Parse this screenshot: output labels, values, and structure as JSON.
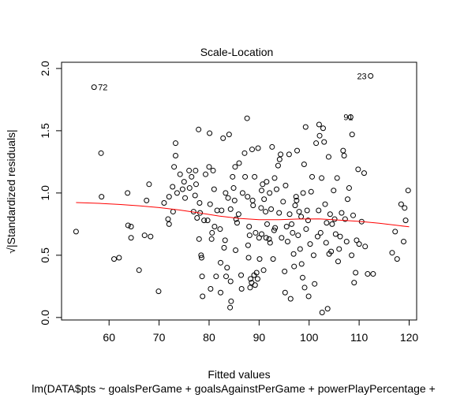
{
  "chart_data": {
    "type": "scatter",
    "title": "Scale-Location",
    "xlabel": "Fitted values",
    "ylabel": "√|Standardized residuals|",
    "subtitle": "lm(DATA$pts ~ goalsPerGame + goalsAgainstPerGame + powerPlayPercentage + ",
    "xlim": [
      50.5,
      121.5
    ],
    "ylim": [
      -0.02,
      2.05
    ],
    "x_ticks": [
      60,
      70,
      80,
      90,
      100,
      110,
      120
    ],
    "y_ticks": [
      0.0,
      0.5,
      1.0,
      1.5,
      2.0
    ],
    "x_tick_labels": [
      "60",
      "70",
      "80",
      "90",
      "100",
      "110",
      "120"
    ],
    "y_tick_labels": [
      "0.0",
      "0.5",
      "1.0",
      "1.5",
      "2.0"
    ],
    "point_color": "#000000",
    "smooth_color": "#FF0000",
    "annotations": [
      {
        "label": "72",
        "x": 57.0,
        "y": 1.85,
        "side": "right"
      },
      {
        "label": "23",
        "x": 112.3,
        "y": 1.94,
        "side": "left"
      },
      {
        "label": "91",
        "x": 109.6,
        "y": 1.61,
        "side": "left"
      }
    ],
    "points": [
      [
        53.4,
        0.69
      ],
      [
        57.0,
        1.85
      ],
      [
        58.4,
        1.32
      ],
      [
        58.5,
        0.97
      ],
      [
        61.0,
        0.47
      ],
      [
        62.0,
        0.48
      ],
      [
        63.7,
        1.0
      ],
      [
        63.8,
        0.74
      ],
      [
        64.4,
        0.73
      ],
      [
        64.4,
        0.64
      ],
      [
        66.0,
        0.38
      ],
      [
        67.1,
        0.66
      ],
      [
        67.5,
        0.94
      ],
      [
        68.0,
        1.07
      ],
      [
        68.3,
        0.65
      ],
      [
        69.9,
        0.21
      ],
      [
        71.0,
        0.92
      ],
      [
        71.8,
        0.79
      ],
      [
        72.0,
        0.75
      ],
      [
        72.0,
        0.97
      ],
      [
        72.7,
        1.05
      ],
      [
        72.8,
        0.85
      ],
      [
        73.0,
        1.21
      ],
      [
        73.3,
        1.4
      ],
      [
        73.3,
        1.3
      ],
      [
        73.6,
        1.0
      ],
      [
        74.2,
        1.15
      ],
      [
        74.7,
        1.03
      ],
      [
        75.0,
        1.09
      ],
      [
        75.2,
        0.96
      ],
      [
        76.0,
        1.18
      ],
      [
        76.1,
        1.04
      ],
      [
        76.5,
        1.13
      ],
      [
        76.9,
        0.85
      ],
      [
        77.2,
        0.98
      ],
      [
        77.3,
        1.18
      ],
      [
        77.4,
        1.07
      ],
      [
        77.6,
        0.8
      ],
      [
        77.9,
        1.51
      ],
      [
        78.0,
        0.63
      ],
      [
        78.1,
        0.92
      ],
      [
        78.2,
        0.84
      ],
      [
        78.4,
        0.5
      ],
      [
        78.5,
        0.48
      ],
      [
        78.6,
        0.33
      ],
      [
        78.7,
        0.17
      ],
      [
        79.0,
        0.78
      ],
      [
        79.3,
        1.15
      ],
      [
        79.7,
        0.78
      ],
      [
        80.0,
        1.21
      ],
      [
        80.1,
        1.48
      ],
      [
        80.2,
        0.91
      ],
      [
        80.3,
        0.23
      ],
      [
        80.5,
        0.63
      ],
      [
        80.6,
        0.68
      ],
      [
        80.8,
        1.18
      ],
      [
        81.0,
        1.03
      ],
      [
        81.1,
        0.73
      ],
      [
        81.4,
        0.33
      ],
      [
        81.6,
        0.86
      ],
      [
        82.2,
        0.71
      ],
      [
        82.3,
        0.44
      ],
      [
        82.3,
        0.2
      ],
      [
        82.5,
        0.86
      ],
      [
        82.8,
        1.44
      ],
      [
        83.0,
        0.56
      ],
      [
        83.2,
        0.62
      ],
      [
        83.3,
        1.0
      ],
      [
        83.4,
        0.33
      ],
      [
        83.6,
        0.4
      ],
      [
        83.8,
        0.96
      ],
      [
        84.0,
        1.47
      ],
      [
        84.2,
        0.08
      ],
      [
        84.3,
        0.87
      ],
      [
        84.3,
        0.29
      ],
      [
        84.4,
        0.13
      ],
      [
        84.7,
        1.13
      ],
      [
        84.9,
        1.04
      ],
      [
        85.1,
        0.94
      ],
      [
        85.2,
        1.21
      ],
      [
        85.3,
        0.54
      ],
      [
        85.4,
        0.79
      ],
      [
        85.6,
        0.76
      ],
      [
        85.9,
        0.83
      ],
      [
        86.0,
        1.24
      ],
      [
        86.4,
        0.34
      ],
      [
        86.5,
        0.23
      ],
      [
        86.7,
        1.0
      ],
      [
        87.1,
        1.32
      ],
      [
        87.2,
        1.13
      ],
      [
        87.6,
        1.6
      ],
      [
        87.7,
        0.97
      ],
      [
        87.8,
        0.58
      ],
      [
        87.9,
        0.48
      ],
      [
        88.0,
        0.73
      ],
      [
        88.1,
        0.66
      ],
      [
        88.2,
        0.24
      ],
      [
        88.3,
        0.31
      ],
      [
        88.5,
        0.28
      ],
      [
        88.6,
        1.35
      ],
      [
        88.7,
        0.94
      ],
      [
        88.8,
        0.9
      ],
      [
        89.0,
        0.34
      ],
      [
        89.1,
        1.13
      ],
      [
        89.2,
        0.26
      ],
      [
        89.3,
        0.68
      ],
      [
        89.5,
        0.36
      ],
      [
        89.7,
        0.31
      ],
      [
        89.8,
        1.36
      ],
      [
        90.0,
        0.64
      ],
      [
        90.1,
        0.47
      ],
      [
        90.4,
        0.88
      ],
      [
        90.5,
        1.02
      ],
      [
        90.5,
        0.67
      ],
      [
        90.7,
        1.07
      ],
      [
        90.9,
        0.38
      ],
      [
        91.0,
        0.95
      ],
      [
        91.3,
        0.85
      ],
      [
        91.4,
        0.64
      ],
      [
        91.5,
        1.09
      ],
      [
        91.6,
        0.75
      ],
      [
        92.0,
        0.63
      ],
      [
        92.1,
        1.0
      ],
      [
        92.2,
        0.6
      ],
      [
        92.4,
        0.87
      ],
      [
        92.6,
        1.37
      ],
      [
        92.8,
        0.47
      ],
      [
        93.0,
        0.7
      ],
      [
        93.1,
        1.12
      ],
      [
        93.2,
        0.72
      ],
      [
        93.5,
        1.03
      ],
      [
        93.8,
        1.22
      ],
      [
        94.0,
        0.84
      ],
      [
        94.1,
        1.27
      ],
      [
        94.3,
        1.31
      ],
      [
        94.5,
        0.64
      ],
      [
        94.8,
        0.93
      ],
      [
        95.1,
        0.37
      ],
      [
        95.2,
        0.2
      ],
      [
        95.3,
        1.06
      ],
      [
        95.5,
        0.73
      ],
      [
        95.7,
        0.61
      ],
      [
        96.0,
        1.31
      ],
      [
        96.1,
        0.83
      ],
      [
        96.3,
        0.15
      ],
      [
        96.5,
        0.75
      ],
      [
        96.7,
        0.68
      ],
      [
        96.9,
        0.51
      ],
      [
        97.0,
        0.41
      ],
      [
        97.2,
        0.9
      ],
      [
        97.4,
        0.97
      ],
      [
        97.5,
        0.94
      ],
      [
        97.6,
        1.34
      ],
      [
        97.8,
        0.66
      ],
      [
        98.0,
        0.85
      ],
      [
        98.2,
        0.55
      ],
      [
        98.4,
        0.81
      ],
      [
        98.5,
        0.43
      ],
      [
        98.7,
        0.32
      ],
      [
        98.8,
        1.0
      ],
      [
        99.0,
        1.23
      ],
      [
        99.1,
        0.24
      ],
      [
        99.3,
        1.53
      ],
      [
        99.4,
        0.71
      ],
      [
        99.6,
        0.86
      ],
      [
        99.8,
        0.78
      ],
      [
        99.9,
        0.17
      ],
      [
        100.2,
        0.59
      ],
      [
        100.4,
        1.01
      ],
      [
        100.6,
        1.13
      ],
      [
        100.9,
        0.5
      ],
      [
        101.1,
        0.27
      ],
      [
        101.4,
        1.4
      ],
      [
        101.7,
        0.65
      ],
      [
        101.9,
        0.86
      ],
      [
        102.0,
        1.55
      ],
      [
        102.1,
        1.46
      ],
      [
        102.3,
        0.68
      ],
      [
        102.5,
        1.12
      ],
      [
        102.6,
        0.04
      ],
      [
        102.8,
        1.52
      ],
      [
        103.0,
        1.41
      ],
      [
        103.2,
        0.91
      ],
      [
        103.4,
        0.6
      ],
      [
        103.5,
        0.76
      ],
      [
        103.7,
        0.07
      ],
      [
        103.9,
        1.29
      ],
      [
        104.0,
        0.51
      ],
      [
        104.2,
        0.83
      ],
      [
        104.4,
        0.53
      ],
      [
        104.6,
        0.75
      ],
      [
        104.9,
        1.02
      ],
      [
        105.1,
        0.79
      ],
      [
        105.3,
        0.67
      ],
      [
        105.6,
        1.12
      ],
      [
        105.8,
        0.45
      ],
      [
        106.0,
        0.55
      ],
      [
        106.2,
        0.65
      ],
      [
        106.5,
        0.84
      ],
      [
        106.8,
        1.34
      ],
      [
        107.0,
        1.3
      ],
      [
        107.2,
        0.79
      ],
      [
        107.5,
        0.61
      ],
      [
        107.7,
        0.95
      ],
      [
        108.0,
        1.04
      ],
      [
        108.3,
        1.61
      ],
      [
        108.5,
        0.5
      ],
      [
        108.6,
        1.47
      ],
      [
        108.8,
        0.82
      ],
      [
        109.0,
        0.28
      ],
      [
        109.3,
        0.36
      ],
      [
        109.5,
        0.62
      ],
      [
        109.8,
        1.19
      ],
      [
        110.0,
        0.59
      ],
      [
        110.5,
        0.77
      ],
      [
        111.0,
        1.16
      ],
      [
        111.2,
        0.57
      ],
      [
        111.7,
        0.35
      ],
      [
        112.3,
        1.94
      ],
      [
        112.8,
        0.35
      ],
      [
        116.6,
        0.52
      ],
      [
        117.2,
        0.69
      ],
      [
        117.6,
        0.47
      ],
      [
        118.4,
        0.91
      ],
      [
        118.9,
        0.61
      ],
      [
        119.1,
        0.88
      ],
      [
        119.3,
        0.78
      ],
      [
        119.8,
        1.02
      ]
    ],
    "smooth": [
      [
        53.4,
        0.923
      ],
      [
        58,
        0.917
      ],
      [
        62,
        0.908
      ],
      [
        66,
        0.897
      ],
      [
        70,
        0.883
      ],
      [
        74,
        0.864
      ],
      [
        78,
        0.84
      ],
      [
        82,
        0.815
      ],
      [
        86,
        0.796
      ],
      [
        90,
        0.785
      ],
      [
        94,
        0.786
      ],
      [
        98,
        0.791
      ],
      [
        102,
        0.792
      ],
      [
        106,
        0.782
      ],
      [
        110,
        0.772
      ],
      [
        114,
        0.757
      ],
      [
        118,
        0.738
      ],
      [
        120,
        0.728
      ]
    ]
  }
}
